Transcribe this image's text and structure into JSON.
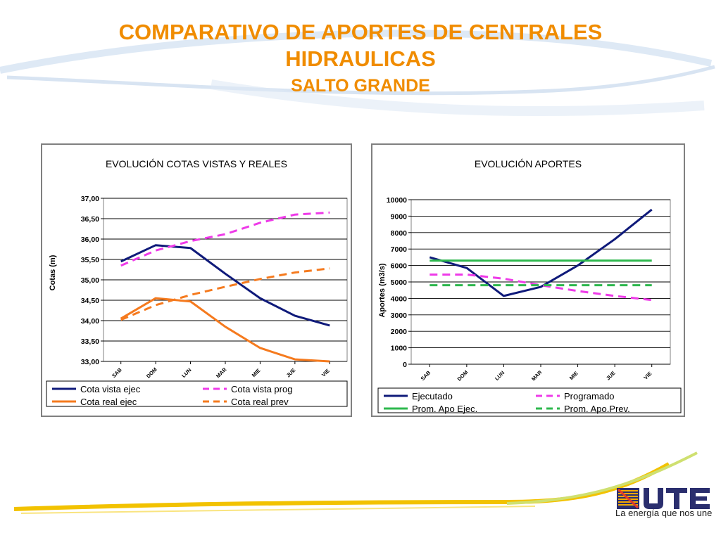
{
  "header": {
    "title_line1": "COMPARATIVO DE APORTES DE CENTRALES",
    "title_line2": "HIDRAULICAS",
    "subtitle": "SALTO GRANDE"
  },
  "colors": {
    "title": "#f08c00",
    "navy": "#0f1a7a",
    "magenta": "#ee3ae8",
    "orange": "#f57a1e",
    "green": "#2eb84e"
  },
  "logo": {
    "brand": "UTE",
    "slogan": "La energía que nos une"
  },
  "chart_data": [
    {
      "type": "line",
      "title": "EVOLUCIÓN  COTAS VISTAS Y REALES",
      "ylabel": "Cotas (m)",
      "xlabel": "",
      "categories": [
        "SAB",
        "DOM",
        "LUN",
        "MAR",
        "MIE",
        "JUE",
        "VIE"
      ],
      "ylim": [
        33.0,
        37.0
      ],
      "yticks": [
        "37,00",
        "36,50",
        "36,00",
        "35,50",
        "35,00",
        "34,50",
        "34,00",
        "33,50",
        "33,00"
      ],
      "grid": true,
      "legend_position": "bottom",
      "series": [
        {
          "name": "Cota vista ejec",
          "color": "#0f1a7a",
          "style": "solid",
          "values": [
            35.45,
            35.85,
            35.78,
            35.15,
            34.55,
            34.12,
            33.88
          ]
        },
        {
          "name": "Cota vista prog",
          "color": "#ee3ae8",
          "style": "dashed",
          "values": [
            35.35,
            35.72,
            35.95,
            36.12,
            36.4,
            36.6,
            36.65
          ]
        },
        {
          "name": "Cota real ejec",
          "color": "#f57a1e",
          "style": "solid",
          "values": [
            34.05,
            34.55,
            34.47,
            33.85,
            33.33,
            33.05,
            33.0
          ]
        },
        {
          "name": "Cota real prev",
          "color": "#f57a1e",
          "style": "dashed",
          "values": [
            34.02,
            34.38,
            34.63,
            34.83,
            35.02,
            35.18,
            35.28
          ]
        }
      ]
    },
    {
      "type": "line",
      "title": "EVOLUCIÓN  APORTES",
      "ylabel": "Aportes (m3/s)",
      "xlabel": "",
      "categories": [
        "SAB",
        "DOM",
        "LUN",
        "MAR",
        "MIE",
        "JUE",
        "VIE"
      ],
      "ylim": [
        0,
        10000
      ],
      "yticks": [
        "10000",
        "9000",
        "8000",
        "7000",
        "6000",
        "5000",
        "4000",
        "3000",
        "2000",
        "1000",
        "0"
      ],
      "grid": true,
      "legend_position": "bottom",
      "series": [
        {
          "name": "Ejecutado",
          "color": "#0f1a7a",
          "style": "solid",
          "values": [
            6500,
            5850,
            4150,
            4700,
            6000,
            7600,
            9400
          ]
        },
        {
          "name": "Programado",
          "color": "#ee3ae8",
          "style": "dashed",
          "values": [
            5450,
            5450,
            5200,
            4800,
            4450,
            4150,
            3900
          ]
        },
        {
          "name": "Prom. Apo Ejec.",
          "color": "#2eb84e",
          "style": "solid",
          "values": [
            6300,
            6300,
            6300,
            6300,
            6300,
            6300,
            6300
          ]
        },
        {
          "name": "Prom. Apo.Prev.",
          "color": "#2eb84e",
          "style": "dashed",
          "values": [
            4800,
            4800,
            4800,
            4800,
            4800,
            4800,
            4800
          ]
        }
      ]
    }
  ]
}
